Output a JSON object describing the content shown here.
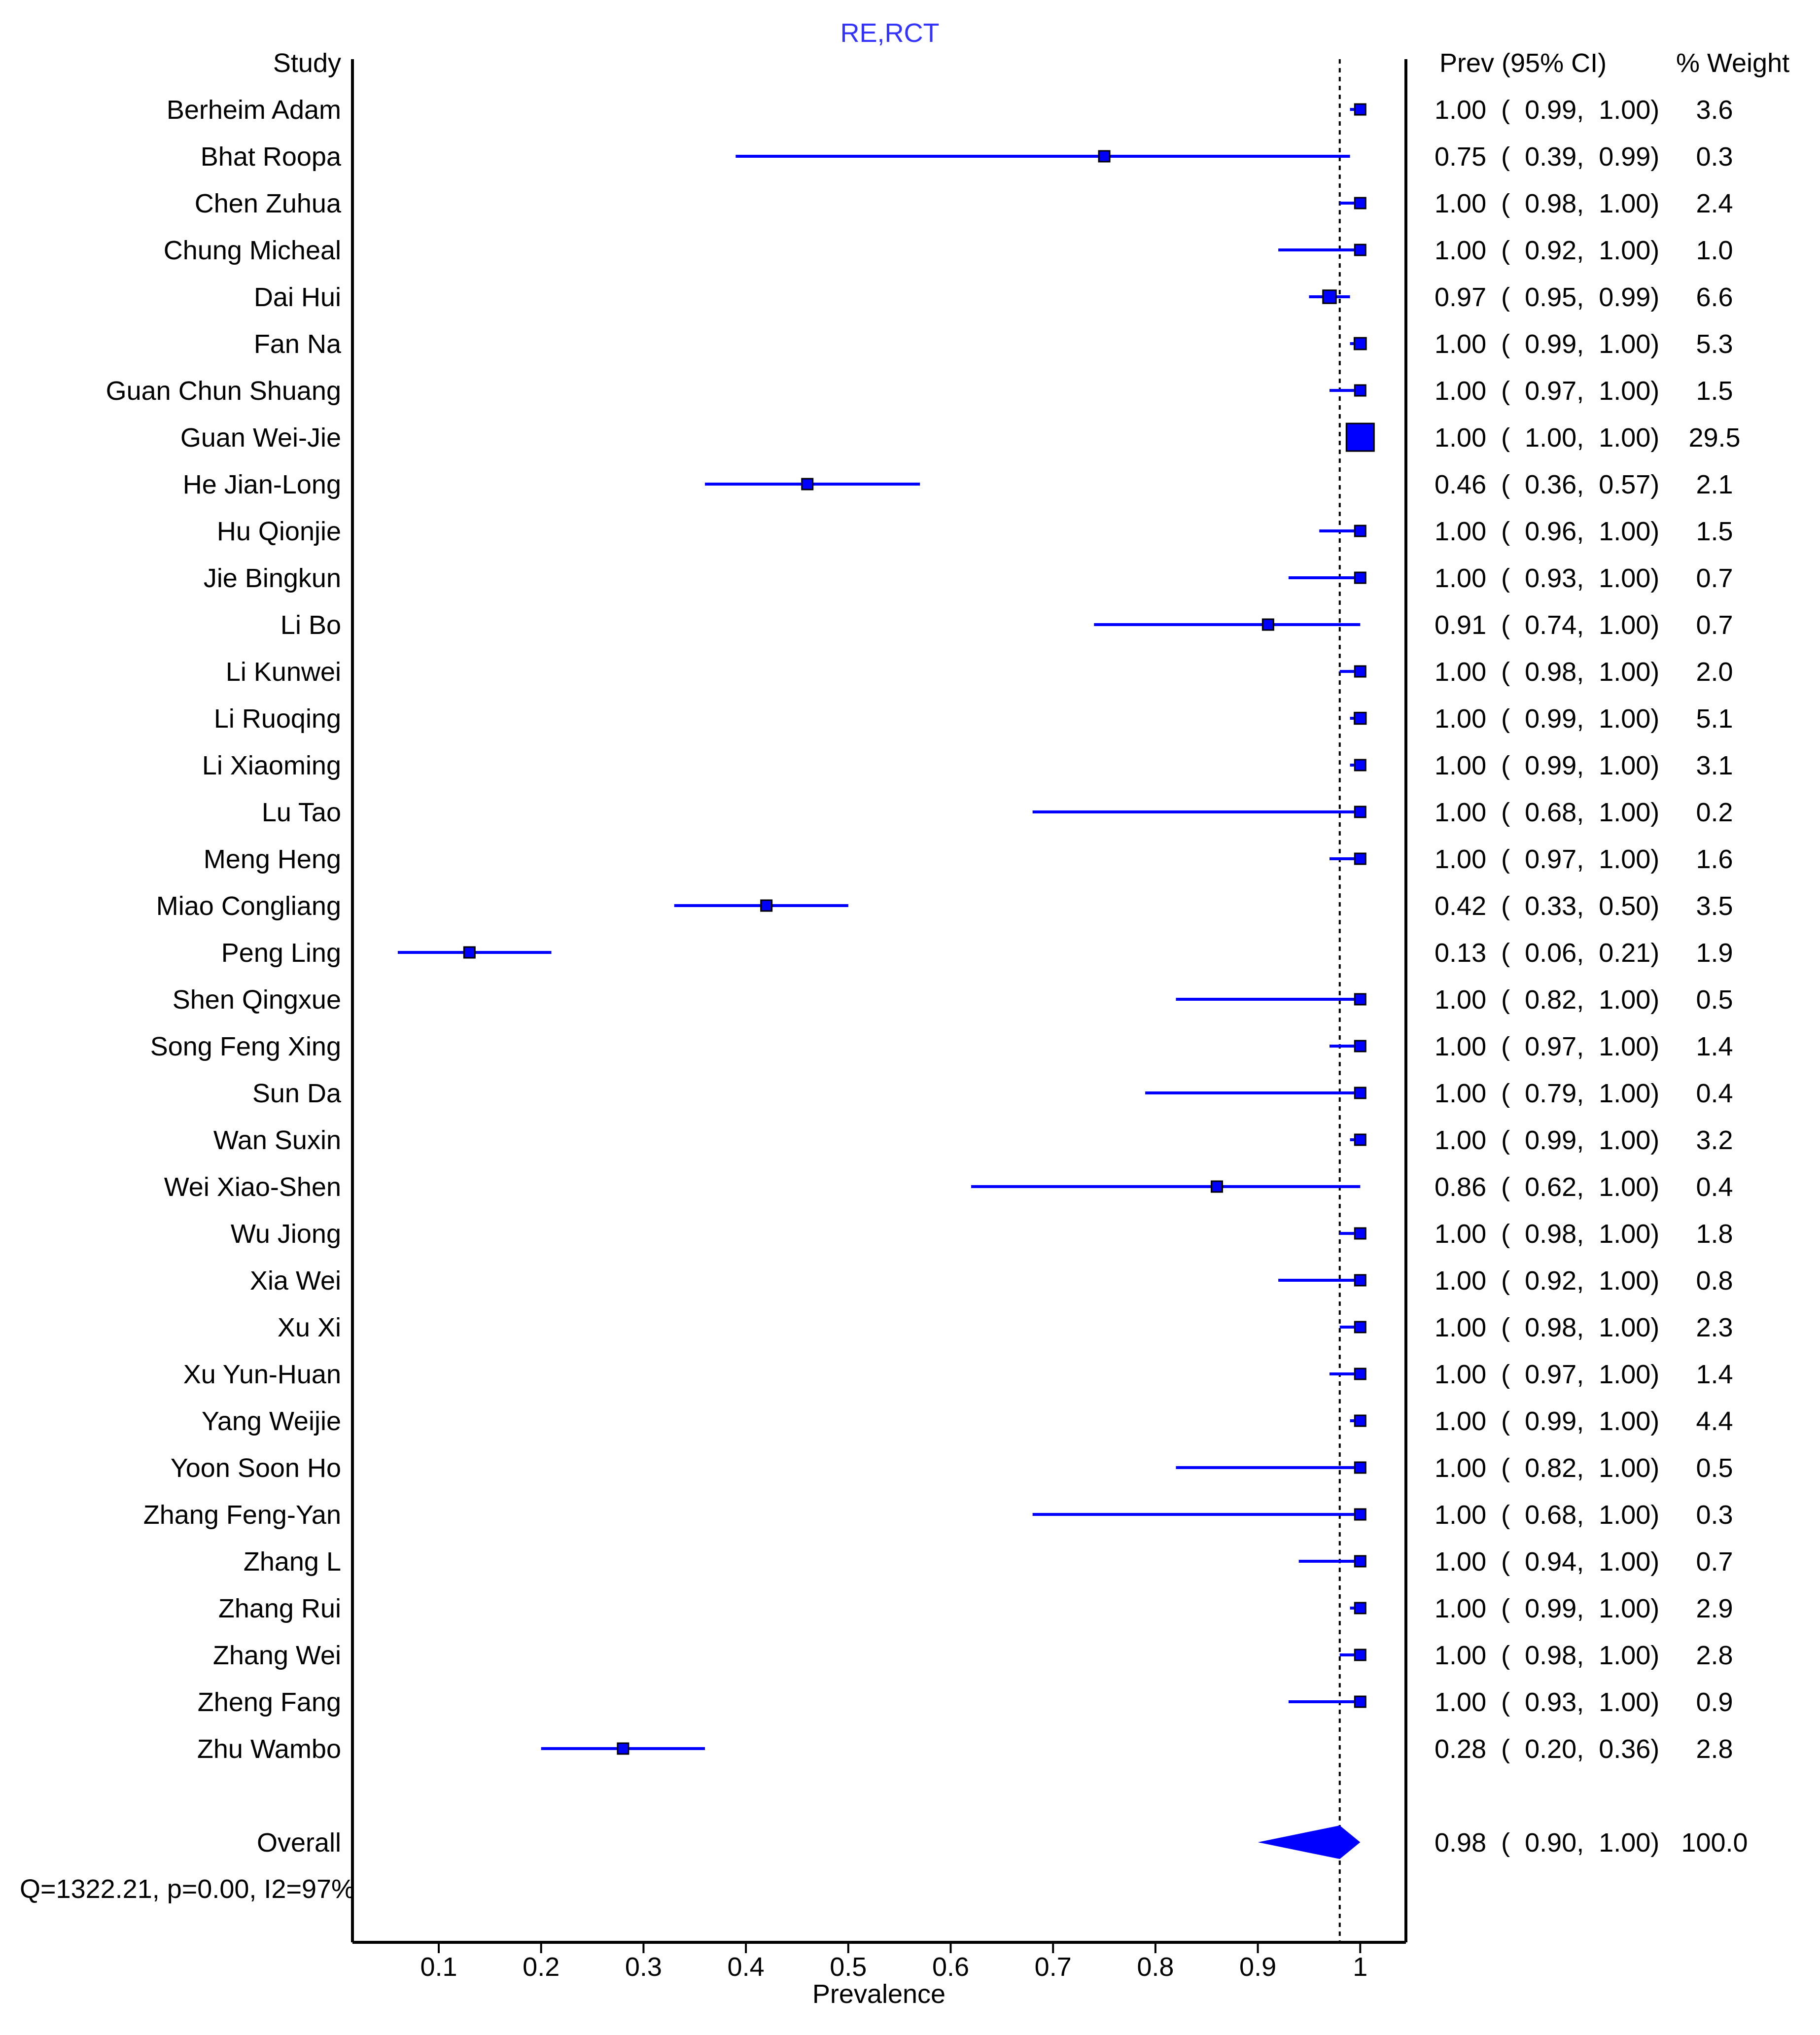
{
  "chart_data": {
    "type": "forest",
    "title": "RE,RCT",
    "xlabel": "Prevalence",
    "xlim": [
      0.02,
      1.05
    ],
    "x_ticks": [
      0.1,
      0.2,
      0.3,
      0.4,
      0.5,
      0.6,
      0.7,
      0.8,
      0.9,
      1
    ],
    "x_tick_labels": [
      "0.1",
      "0.2",
      "0.3",
      "0.4",
      "0.5",
      "0.6",
      "0.7",
      "0.8",
      "0.9",
      "1"
    ],
    "reference_line": 0.98,
    "headers": {
      "study": "Study",
      "estimate": "Prev (95% CI)",
      "weight": "% Weight"
    },
    "series_color": "#0000ff",
    "title_color": "#3333ff",
    "studies": [
      {
        "name": "Berheim Adam",
        "est": 1.0,
        "lo": 0.99,
        "hi": 1.0,
        "ci": "1.00  (  0.99,  1.00)",
        "weight": 3.6,
        "weight_label": "3.6"
      },
      {
        "name": "Bhat Roopa",
        "est": 0.75,
        "lo": 0.39,
        "hi": 0.99,
        "ci": "0.75  (  0.39,  0.99)",
        "weight": 0.3,
        "weight_label": "0.3"
      },
      {
        "name": "Chen Zuhua",
        "est": 1.0,
        "lo": 0.98,
        "hi": 1.0,
        "ci": "1.00  (  0.98,  1.00)",
        "weight": 2.4,
        "weight_label": "2.4"
      },
      {
        "name": "Chung Micheal",
        "est": 1.0,
        "lo": 0.92,
        "hi": 1.0,
        "ci": "1.00  (  0.92,  1.00)",
        "weight": 1.0,
        "weight_label": "1.0"
      },
      {
        "name": "Dai Hui",
        "est": 0.97,
        "lo": 0.95,
        "hi": 0.99,
        "ci": "0.97  (  0.95,  0.99)",
        "weight": 6.6,
        "weight_label": "6.6"
      },
      {
        "name": "Fan Na",
        "est": 1.0,
        "lo": 0.99,
        "hi": 1.0,
        "ci": "1.00  (  0.99,  1.00)",
        "weight": 5.3,
        "weight_label": "5.3"
      },
      {
        "name": "Guan Chun Shuang",
        "est": 1.0,
        "lo": 0.97,
        "hi": 1.0,
        "ci": "1.00  (  0.97,  1.00)",
        "weight": 1.5,
        "weight_label": "1.5"
      },
      {
        "name": "Guan Wei-Jie",
        "est": 1.0,
        "lo": 1.0,
        "hi": 1.0,
        "ci": "1.00  (  1.00,  1.00)",
        "weight": 29.5,
        "weight_label": "29.5"
      },
      {
        "name": "He Jian-Long",
        "est": 0.46,
        "lo": 0.36,
        "hi": 0.57,
        "ci": "0.46  (  0.36,  0.57)",
        "weight": 2.1,
        "weight_label": "2.1"
      },
      {
        "name": "Hu Qionjie",
        "est": 1.0,
        "lo": 0.96,
        "hi": 1.0,
        "ci": "1.00  (  0.96,  1.00)",
        "weight": 1.5,
        "weight_label": "1.5"
      },
      {
        "name": "Jie Bingkun",
        "est": 1.0,
        "lo": 0.93,
        "hi": 1.0,
        "ci": "1.00  (  0.93,  1.00)",
        "weight": 0.7,
        "weight_label": "0.7"
      },
      {
        "name": "Li Bo",
        "est": 0.91,
        "lo": 0.74,
        "hi": 1.0,
        "ci": "0.91  (  0.74,  1.00)",
        "weight": 0.7,
        "weight_label": "0.7"
      },
      {
        "name": "Li Kunwei",
        "est": 1.0,
        "lo": 0.98,
        "hi": 1.0,
        "ci": "1.00  (  0.98,  1.00)",
        "weight": 2.0,
        "weight_label": "2.0"
      },
      {
        "name": "Li Ruoqing",
        "est": 1.0,
        "lo": 0.99,
        "hi": 1.0,
        "ci": "1.00  (  0.99,  1.00)",
        "weight": 5.1,
        "weight_label": "5.1"
      },
      {
        "name": "Li Xiaoming",
        "est": 1.0,
        "lo": 0.99,
        "hi": 1.0,
        "ci": "1.00  (  0.99,  1.00)",
        "weight": 3.1,
        "weight_label": "3.1"
      },
      {
        "name": "Lu Tao",
        "est": 1.0,
        "lo": 0.68,
        "hi": 1.0,
        "ci": "1.00  (  0.68,  1.00)",
        "weight": 0.2,
        "weight_label": "0.2"
      },
      {
        "name": "Meng Heng",
        "est": 1.0,
        "lo": 0.97,
        "hi": 1.0,
        "ci": "1.00  (  0.97,  1.00)",
        "weight": 1.6,
        "weight_label": "1.6"
      },
      {
        "name": "Miao Congliang",
        "est": 0.42,
        "lo": 0.33,
        "hi": 0.5,
        "ci": "0.42  (  0.33,  0.50)",
        "weight": 3.5,
        "weight_label": "3.5"
      },
      {
        "name": "Peng Ling",
        "est": 0.13,
        "lo": 0.06,
        "hi": 0.21,
        "ci": "0.13  (  0.06,  0.21)",
        "weight": 1.9,
        "weight_label": "1.9"
      },
      {
        "name": "Shen Qingxue",
        "est": 1.0,
        "lo": 0.82,
        "hi": 1.0,
        "ci": "1.00  (  0.82,  1.00)",
        "weight": 0.5,
        "weight_label": "0.5"
      },
      {
        "name": "Song Feng Xing",
        "est": 1.0,
        "lo": 0.97,
        "hi": 1.0,
        "ci": "1.00  (  0.97,  1.00)",
        "weight": 1.4,
        "weight_label": "1.4"
      },
      {
        "name": "Sun Da",
        "est": 1.0,
        "lo": 0.79,
        "hi": 1.0,
        "ci": "1.00  (  0.79,  1.00)",
        "weight": 0.4,
        "weight_label": "0.4"
      },
      {
        "name": "Wan Suxin",
        "est": 1.0,
        "lo": 0.99,
        "hi": 1.0,
        "ci": "1.00  (  0.99,  1.00)",
        "weight": 3.2,
        "weight_label": "3.2"
      },
      {
        "name": "Wei Xiao-Shen",
        "est": 0.86,
        "lo": 0.62,
        "hi": 1.0,
        "ci": "0.86  (  0.62,  1.00)",
        "weight": 0.4,
        "weight_label": "0.4"
      },
      {
        "name": "Wu Jiong",
        "est": 1.0,
        "lo": 0.98,
        "hi": 1.0,
        "ci": "1.00  (  0.98,  1.00)",
        "weight": 1.8,
        "weight_label": "1.8"
      },
      {
        "name": "Xia Wei",
        "est": 1.0,
        "lo": 0.92,
        "hi": 1.0,
        "ci": "1.00  (  0.92,  1.00)",
        "weight": 0.8,
        "weight_label": "0.8"
      },
      {
        "name": "Xu Xi",
        "est": 1.0,
        "lo": 0.98,
        "hi": 1.0,
        "ci": "1.00  (  0.98,  1.00)",
        "weight": 2.3,
        "weight_label": "2.3"
      },
      {
        "name": "Xu Yun-Huan",
        "est": 1.0,
        "lo": 0.97,
        "hi": 1.0,
        "ci": "1.00  (  0.97,  1.00)",
        "weight": 1.4,
        "weight_label": "1.4"
      },
      {
        "name": "Yang Weijie",
        "est": 1.0,
        "lo": 0.99,
        "hi": 1.0,
        "ci": "1.00  (  0.99,  1.00)",
        "weight": 4.4,
        "weight_label": "4.4"
      },
      {
        "name": "Yoon Soon Ho",
        "est": 1.0,
        "lo": 0.82,
        "hi": 1.0,
        "ci": "1.00  (  0.82,  1.00)",
        "weight": 0.5,
        "weight_label": "0.5"
      },
      {
        "name": "Zhang Feng-Yan",
        "est": 1.0,
        "lo": 0.68,
        "hi": 1.0,
        "ci": "1.00  (  0.68,  1.00)",
        "weight": 0.3,
        "weight_label": "0.3"
      },
      {
        "name": "Zhang L",
        "est": 1.0,
        "lo": 0.94,
        "hi": 1.0,
        "ci": "1.00  (  0.94,  1.00)",
        "weight": 0.7,
        "weight_label": "0.7"
      },
      {
        "name": "Zhang Rui",
        "est": 1.0,
        "lo": 0.99,
        "hi": 1.0,
        "ci": "1.00  (  0.99,  1.00)",
        "weight": 2.9,
        "weight_label": "2.9"
      },
      {
        "name": "Zhang Wei",
        "est": 1.0,
        "lo": 0.98,
        "hi": 1.0,
        "ci": "1.00  (  0.98,  1.00)",
        "weight": 2.8,
        "weight_label": "2.8"
      },
      {
        "name": "Zheng Fang",
        "est": 1.0,
        "lo": 0.93,
        "hi": 1.0,
        "ci": "1.00  (  0.93,  1.00)",
        "weight": 0.9,
        "weight_label": "0.9"
      },
      {
        "name": "Zhu Wambo",
        "est": 0.28,
        "lo": 0.2,
        "hi": 0.36,
        "ci": "0.28  (  0.20,  0.36)",
        "weight": 2.8,
        "weight_label": "2.8"
      }
    ],
    "overall": {
      "name": "Overall",
      "est": 0.98,
      "lo": 0.9,
      "hi": 1.0,
      "ci": "0.98  (  0.90,  1.00)",
      "weight": 100.0,
      "weight_label": "100.0"
    },
    "heterogeneity": "Q=1322.21, p=0.00, I2=97%"
  }
}
